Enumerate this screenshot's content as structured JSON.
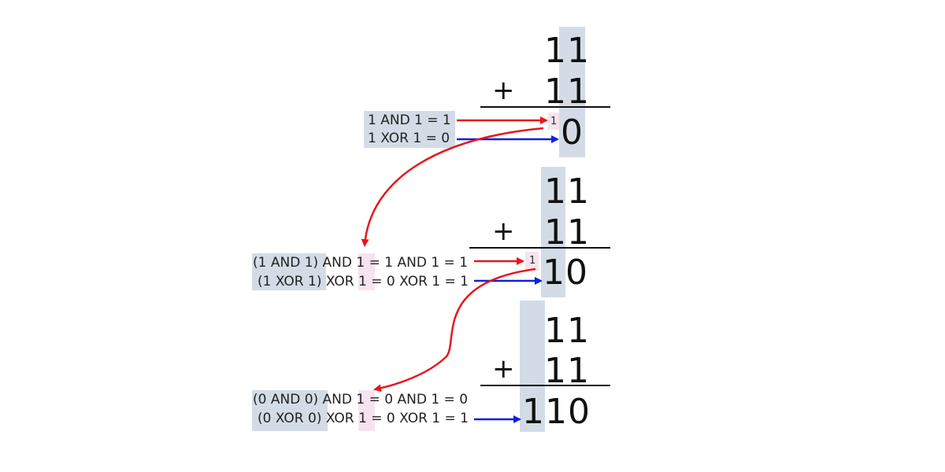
{
  "colors": {
    "carry_arrow": "#e8161b",
    "sum_arrow": "#1020e0",
    "column_highlight": "#d3dce6",
    "bit_highlight": "#f7e3ef"
  },
  "step1": {
    "top": "11",
    "bottom": "11",
    "plus": "+",
    "carry": "1",
    "result": "0",
    "and_line": "1 AND 1 = 1",
    "xor_line": "1 XOR 1 = 0"
  },
  "step2": {
    "top": "11",
    "bottom": "11",
    "plus": "+",
    "carry": "1",
    "result": "10",
    "and_prefix": "(1 AND 1)",
    "and_mid": " AND ",
    "and_bit": "1",
    "and_rest": " = 1 AND 1 = 1",
    "xor_prefix": "(1 XOR 1)",
    "xor_mid": " XOR ",
    "xor_bit": "1",
    "xor_rest": " = 0 XOR 1 = 1"
  },
  "step3": {
    "top": "11",
    "bottom": "11",
    "plus": "+",
    "result": "110",
    "and_prefix": "(0 AND 0)",
    "and_mid": " AND ",
    "and_bit": "1",
    "and_rest": " = 0 AND 1 = 0",
    "xor_prefix": "(0 XOR 0)",
    "xor_mid": " XOR ",
    "xor_bit": "1",
    "xor_rest": " = 0 XOR 1 = 1"
  }
}
